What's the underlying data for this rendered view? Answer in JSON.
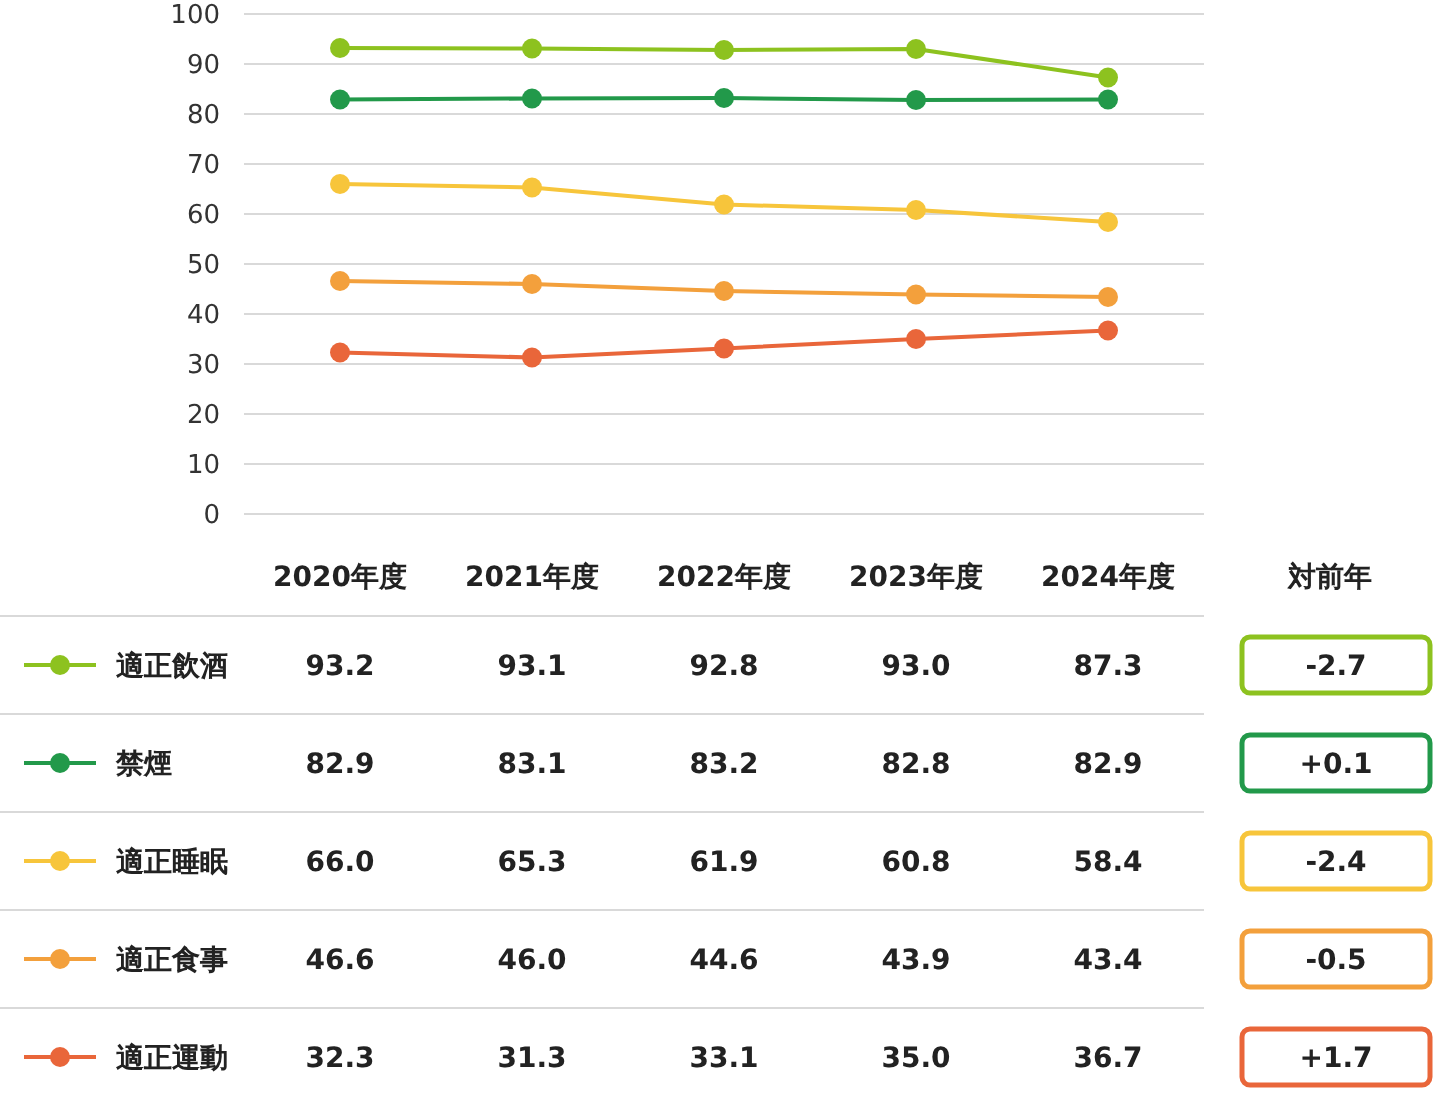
{
  "chart_data": {
    "type": "line",
    "categories": [
      "2020年度",
      "2021年度",
      "2022年度",
      "2023年度",
      "2024年度"
    ],
    "series": [
      {
        "name": "適正飲酒",
        "color": "#8dc21f",
        "values": [
          93.2,
          93.1,
          92.8,
          93.0,
          87.3
        ],
        "value_labels": [
          "93.2",
          "93.1",
          "92.8",
          "93.0",
          "87.3"
        ]
      },
      {
        "name": "禁煙",
        "color": "#22994a",
        "values": [
          82.9,
          83.1,
          83.2,
          82.8,
          82.9
        ],
        "value_labels": [
          "82.9",
          "83.1",
          "83.2",
          "82.8",
          "82.9"
        ]
      },
      {
        "name": "適正睡眠",
        "color": "#f7c53b",
        "values": [
          66.0,
          65.3,
          61.9,
          60.8,
          58.4
        ],
        "value_labels": [
          "66.0",
          "65.3",
          "61.9",
          "60.8",
          "58.4"
        ]
      },
      {
        "name": "適正食事",
        "color": "#f3a03c",
        "values": [
          46.6,
          46.0,
          44.6,
          43.9,
          43.4
        ],
        "value_labels": [
          "46.6",
          "46.0",
          "44.6",
          "43.9",
          "43.4"
        ]
      },
      {
        "name": "適正運動",
        "color": "#e9663a",
        "values": [
          32.3,
          31.3,
          33.1,
          35.0,
          36.7
        ],
        "value_labels": [
          "32.3",
          "31.3",
          "33.1",
          "35.0",
          "36.7"
        ]
      }
    ],
    "ylim": [
      0,
      100
    ],
    "yticks": [
      0,
      10,
      20,
      30,
      40,
      50,
      60,
      70,
      80,
      90,
      100
    ],
    "grid": "y",
    "marker": "circle",
    "line_style": "solid",
    "legend": "bottom left",
    "annotations": [
      "対前年",
      "-2.7",
      "+0.1",
      "-2.4",
      "-0.5",
      "+1.7"
    ]
  }
}
